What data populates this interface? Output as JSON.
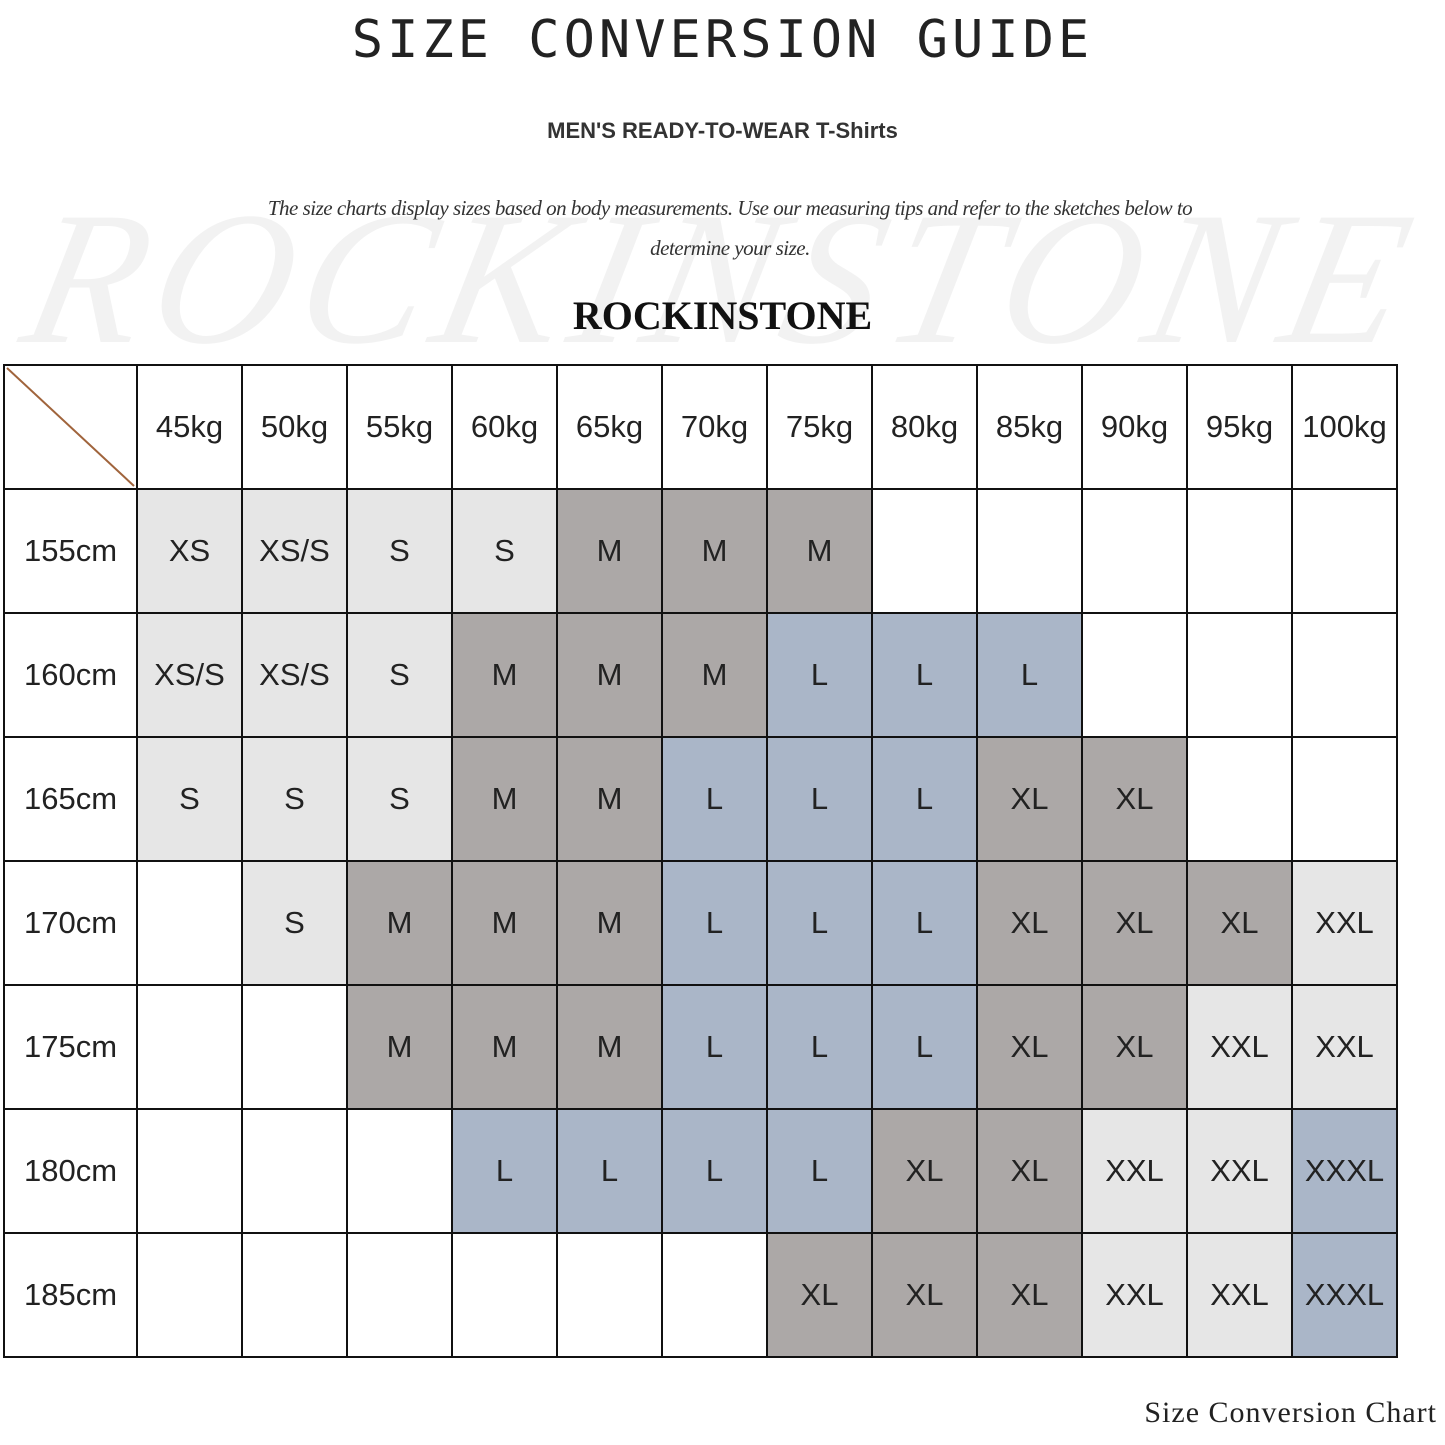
{
  "header": {
    "title": "SIZE CONVERSION GUIDE",
    "subtitle": "MEN'S READY-TO-WEAR T-Shirts",
    "description": "The size charts display sizes based on body measurements. Use our measuring tips and refer to the sketches below to determine your size.",
    "brand": "ROCKINSTONE",
    "watermark": "ROCKINSTONE"
  },
  "colors": {
    "light": "#e6e6e6",
    "dark": "#aca8a7",
    "blue": "#aab6c8",
    "empty": "#ffffff",
    "diagonal": "#a0643c"
  },
  "size_colors": {
    "XS": "light",
    "XS/S": "light",
    "S": "light",
    "M": "dark",
    "L": "blue",
    "XL": "dark",
    "XXL": "light",
    "XXXL": "blue"
  },
  "table": {
    "weights": [
      "45kg",
      "50kg",
      "55kg",
      "60kg",
      "65kg",
      "70kg",
      "75kg",
      "80kg",
      "85kg",
      "90kg",
      "95kg",
      "100kg"
    ],
    "rows": [
      {
        "height": "155cm",
        "sizes": [
          "XS",
          "XS/S",
          "S",
          "S",
          "M",
          "M",
          "M",
          "",
          "",
          "",
          "",
          ""
        ]
      },
      {
        "height": "160cm",
        "sizes": [
          "XS/S",
          "XS/S",
          "S",
          "M",
          "M",
          "M",
          "L",
          "L",
          "L",
          "",
          "",
          ""
        ]
      },
      {
        "height": "165cm",
        "sizes": [
          "S",
          "S",
          "S",
          "M",
          "M",
          "L",
          "L",
          "L",
          "XL",
          "XL",
          "",
          ""
        ]
      },
      {
        "height": "170cm",
        "sizes": [
          "",
          "S",
          "M",
          "M",
          "M",
          "L",
          "L",
          "L",
          "XL",
          "XL",
          "XL",
          "XXL"
        ]
      },
      {
        "height": "175cm",
        "sizes": [
          "",
          "",
          "M",
          "M",
          "M",
          "L",
          "L",
          "L",
          "XL",
          "XL",
          "XXL",
          "XXL"
        ]
      },
      {
        "height": "180cm",
        "sizes": [
          "",
          "",
          "",
          "L",
          "L",
          "L",
          "L",
          "XL",
          "XL",
          "XXL",
          "XXL",
          "XXXL"
        ]
      },
      {
        "height": "185cm",
        "sizes": [
          "",
          "",
          "",
          "",
          "",
          "",
          "XL",
          "XL",
          "XL",
          "XXL",
          "XXL",
          "XXXL"
        ]
      }
    ]
  },
  "footer": "Size Conversion Chart"
}
